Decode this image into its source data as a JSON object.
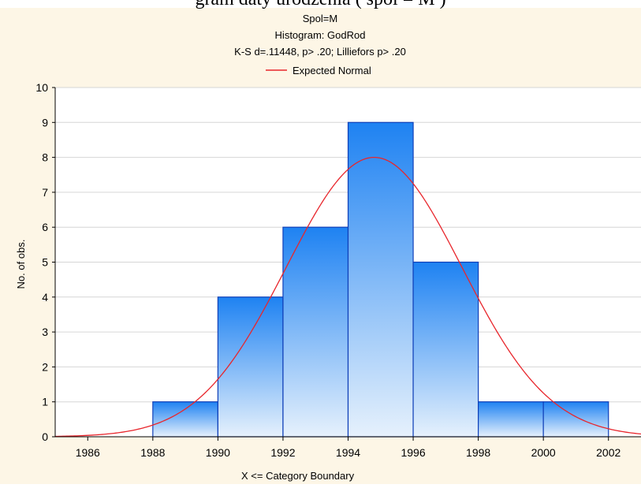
{
  "page_caption": "gram daty urodzenia ( spol = M )",
  "colors": {
    "panel_background": "#fdf6e6",
    "bar_top": "#1e82f2",
    "bar_bottom": "#e6f1fc",
    "bar_stroke": "#0f3fb8",
    "normal_curve": "#e8262c",
    "grid": "#d6d6d6"
  },
  "chart_data": {
    "type": "bar",
    "title_lines": [
      "Spol=M",
      "Histogram: GodRod",
      "K-S d=.11448, p> .20; Lilliefors p> .20"
    ],
    "xlabel": "X <= Category Boundary",
    "ylabel": "No. of obs.",
    "legend": [
      {
        "name": "Expected Normal",
        "color": "#e8262c"
      }
    ],
    "legend_position": "top",
    "xlim": [
      1985,
      2003
    ],
    "ylim": [
      0,
      10
    ],
    "x_ticks": [
      1986,
      1988,
      1990,
      1992,
      1994,
      1996,
      1998,
      2000,
      2002
    ],
    "y_ticks": [
      0,
      1,
      2,
      3,
      4,
      5,
      6,
      7,
      8,
      9,
      10
    ],
    "grid": true,
    "bins": [
      {
        "from": 1988,
        "to": 1990,
        "count": 1
      },
      {
        "from": 1990,
        "to": 1992,
        "count": 4
      },
      {
        "from": 1992,
        "to": 1994,
        "count": 6
      },
      {
        "from": 1994,
        "to": 1996,
        "count": 9
      },
      {
        "from": 1996,
        "to": 1998,
        "count": 5
      },
      {
        "from": 1998,
        "to": 2000,
        "count": 1
      },
      {
        "from": 2000,
        "to": 2002,
        "count": 1
      }
    ],
    "expected_normal": {
      "mean": 1994.8,
      "sd": 2.7,
      "peak": 8.0
    }
  }
}
